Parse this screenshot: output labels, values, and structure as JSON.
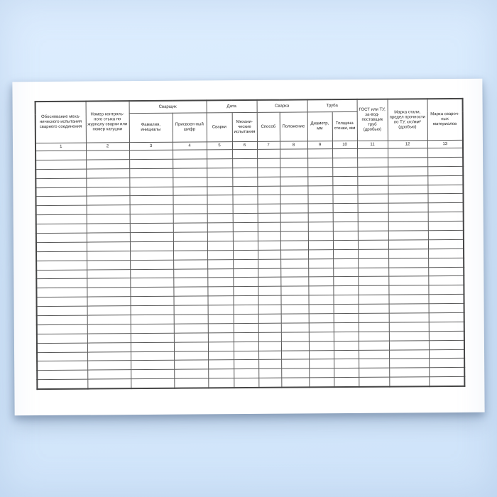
{
  "background": {
    "top_color": "#ddedfe",
    "bottom_color": "#cfe3f9",
    "sheet_color": "#ffffff",
    "grid_line_color": "#595959",
    "text_color": "#242424"
  },
  "table": {
    "group_headers": {
      "welder": "Сварщик",
      "date": "Дата",
      "weld": "Сварка",
      "pipe": "Труба"
    },
    "column_headers": {
      "c1": "Обоснование меха-нического испытания сварного соединения",
      "c2": "Номер контроль-ного стыка по журналу сварки или номер катушки",
      "c3": "Фамилия, инициалы",
      "c4": "Присвоен-ный шифр",
      "c5": "Сварки",
      "c6": "Механи-ческие испытания",
      "c7": "Способ",
      "c8": "Положение",
      "c9": "Диаметр, мм",
      "c10": "Толщина стенки, мм",
      "c11": "ГОСТ или ТУ, за-вод-поставщик труб (дробью)",
      "c12": "Марка стали, предел прочности по ТУ, кгс/мм² (дробью)",
      "c13": "Марка свароч-ных материалов"
    },
    "column_numbers": [
      "1",
      "2",
      "3",
      "4",
      "5",
      "6",
      "7",
      "8",
      "9",
      "10",
      "11",
      "12",
      "13"
    ],
    "body_row_count": 26,
    "body_cell_value": ""
  }
}
